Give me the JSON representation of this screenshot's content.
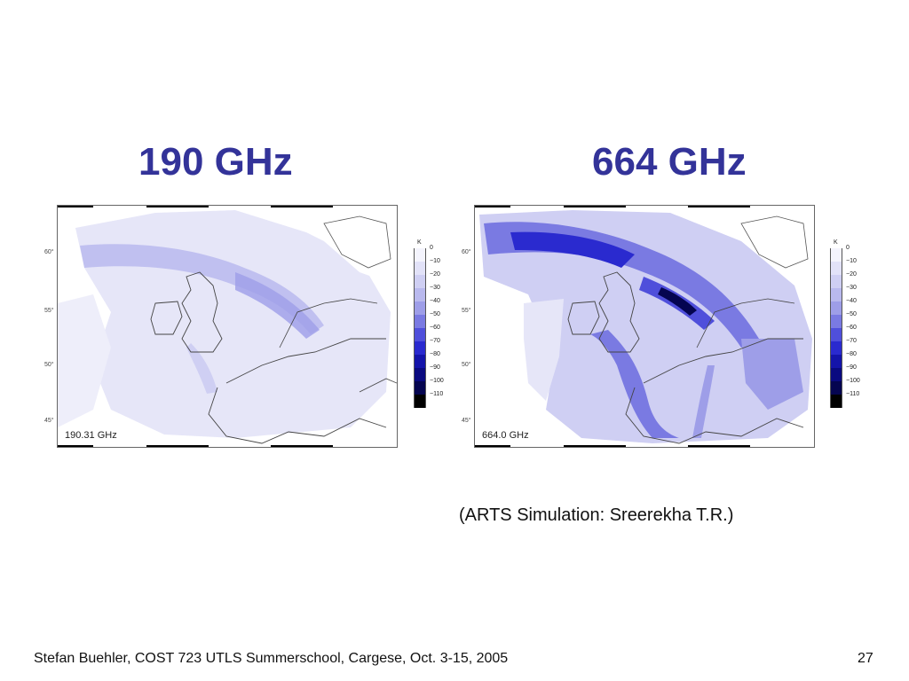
{
  "slide": {
    "title_left": "190 GHz",
    "title_right": "664 GHz",
    "credit": "(ARTS Simulation: Sreerekha T.R.)",
    "footer": "Stefan Buehler, COST 723 UTLS Summerschool, Cargese, Oct. 3-15, 2005",
    "page_number": "27",
    "title_color": "#333399"
  },
  "maps": {
    "left": {
      "label": "190.31 GHz",
      "lat_labels": [
        "60°",
        "55°",
        "50°",
        "45°"
      ]
    },
    "right": {
      "label": "664.0 GHz",
      "lat_labels": [
        "60°",
        "55°",
        "50°",
        "45°"
      ]
    }
  },
  "colorbar": {
    "unit": "K",
    "ticks": [
      "0",
      "−10",
      "−20",
      "−30",
      "−40",
      "−50",
      "−60",
      "−70",
      "−80",
      "−90",
      "−100",
      "−110"
    ],
    "colors": [
      "#f4f4fd",
      "#e2e2f8",
      "#cfcff3",
      "#b9b9ee",
      "#9e9ee8",
      "#7a7ae2",
      "#4f4fdb",
      "#2a2acf",
      "#1414aa",
      "#0a0a80",
      "#050550",
      "#000000"
    ]
  }
}
